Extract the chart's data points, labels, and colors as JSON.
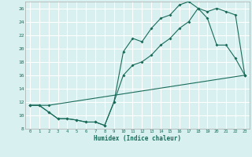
{
  "xlabel": "Humidex (Indice chaleur)",
  "bg_color": "#d8f0f0",
  "grid_color": "#ffffff",
  "line_color": "#1a6b5a",
  "xlim": [
    -0.5,
    23.5
  ],
  "ylim": [
    8,
    27
  ],
  "xticks": [
    0,
    1,
    2,
    3,
    4,
    5,
    6,
    7,
    8,
    9,
    10,
    11,
    12,
    13,
    14,
    15,
    16,
    17,
    18,
    19,
    20,
    21,
    22,
    23
  ],
  "yticks": [
    8,
    10,
    12,
    14,
    16,
    18,
    20,
    22,
    24,
    26
  ],
  "line1_x": [
    0,
    1,
    2,
    3,
    4,
    5,
    6,
    7,
    8,
    9,
    10,
    11,
    12,
    13,
    14,
    15,
    16,
    17,
    18,
    19,
    20,
    21,
    22,
    23
  ],
  "line1_y": [
    11.5,
    11.5,
    10.5,
    9.5,
    9.5,
    9.3,
    9.0,
    9.0,
    8.5,
    12.0,
    19.5,
    21.5,
    21.0,
    23.0,
    24.5,
    25.0,
    26.5,
    27.0,
    26.0,
    24.5,
    20.5,
    20.5,
    18.5,
    16.0
  ],
  "line2_x": [
    0,
    1,
    2,
    3,
    4,
    5,
    6,
    7,
    8,
    9,
    10,
    11,
    12,
    13,
    14,
    15,
    16,
    17,
    18,
    19,
    20,
    21,
    22,
    23
  ],
  "line2_y": [
    11.5,
    11.5,
    10.5,
    9.5,
    9.5,
    9.3,
    9.0,
    9.0,
    8.5,
    12.0,
    16.0,
    17.5,
    18.0,
    19.0,
    20.5,
    21.5,
    23.0,
    24.0,
    26.0,
    25.5,
    26.0,
    25.5,
    25.0,
    16.0
  ],
  "line3_x": [
    0,
    2,
    23
  ],
  "line3_y": [
    11.5,
    11.5,
    16.0
  ]
}
